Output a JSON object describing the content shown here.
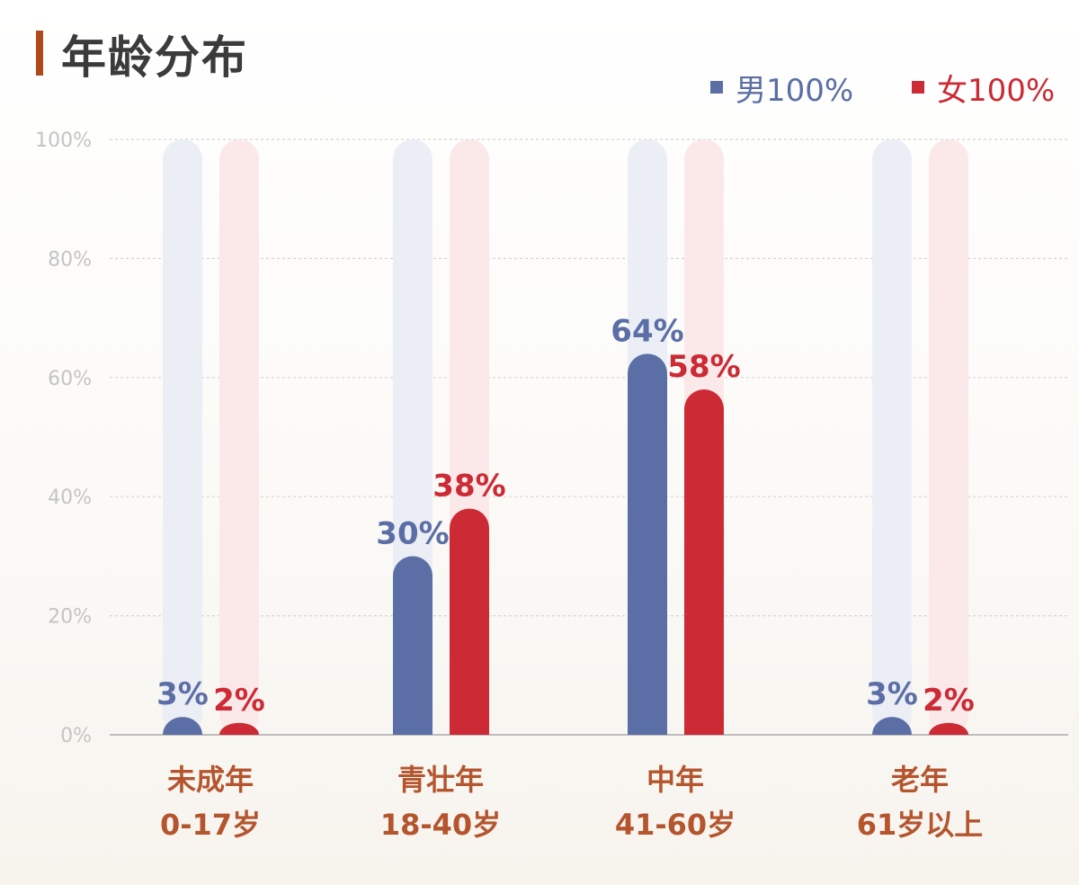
{
  "header": {
    "title": "年龄分布"
  },
  "chart_data": {
    "type": "bar",
    "title": "年龄分布",
    "xlabel": "",
    "ylabel": "",
    "ylim": [
      0,
      100
    ],
    "y_ticks": [
      "0%",
      "20%",
      "40%",
      "60%",
      "80%",
      "100%"
    ],
    "y_tick_values": [
      0,
      20,
      40,
      60,
      80,
      100
    ],
    "grid": true,
    "legend_position": "top-right",
    "categories": [
      {
        "line1": "未成年",
        "line2": "0-17岁"
      },
      {
        "line1": "青壮年",
        "line2": "18-40岁"
      },
      {
        "line1": "中年",
        "line2": "41-60岁"
      },
      {
        "line1": "老年",
        "line2": "61岁以上"
      }
    ],
    "series": [
      {
        "name": "男100%",
        "color": "#5b6ea5",
        "track_color": "#eceef5",
        "values": [
          3,
          30,
          64,
          3
        ],
        "labels": [
          "3%",
          "30%",
          "64%",
          "3%"
        ]
      },
      {
        "name": "女100%",
        "color": "#cc2a35",
        "track_color": "#fbe9e9",
        "values": [
          2,
          38,
          58,
          2
        ],
        "labels": [
          "2%",
          "38%",
          "58%",
          "2%"
        ]
      }
    ]
  }
}
